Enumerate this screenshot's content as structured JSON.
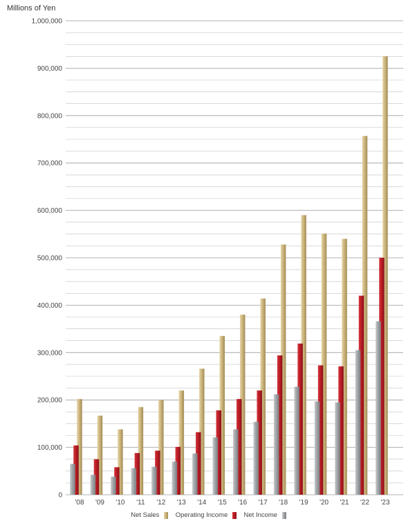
{
  "chart_data": {
    "type": "bar",
    "unit_label": "Millions of Yen",
    "categories": [
      "'08",
      "'09",
      "'10",
      "'11",
      "'12",
      "'13",
      "'14",
      "'15",
      "'16",
      "'17",
      "'18",
      "'19",
      "'20",
      "'21",
      "'22",
      "'23"
    ],
    "series": [
      {
        "name": "Net Sales",
        "color": "#c9b27a",
        "values": [
          202000,
          167000,
          138000,
          185000,
          200000,
          220000,
          266000,
          335000,
          380000,
          414000,
          528000,
          590000,
          551000,
          540000,
          757000,
          925000
        ]
      },
      {
        "name": "Operating Income",
        "color": "#b71c24",
        "values": [
          104000,
          75000,
          58000,
          88000,
          93000,
          101000,
          132000,
          178000,
          202000,
          220000,
          294000,
          319000,
          273000,
          271000,
          420000,
          500000
        ]
      },
      {
        "name": "Net Income",
        "color": "#9ea1a4",
        "values": [
          65000,
          42000,
          38000,
          56000,
          59000,
          70000,
          87000,
          121000,
          138000,
          154000,
          212000,
          228000,
          197000,
          195000,
          305000,
          366000
        ]
      }
    ],
    "ylim": [
      0,
      1000000
    ],
    "yticks": [
      0,
      100000,
      200000,
      300000,
      400000,
      500000,
      600000,
      700000,
      800000,
      900000,
      1000000
    ],
    "ytick_labels": [
      "0",
      "100,000",
      "200,000",
      "300,000",
      "400,000",
      "500,000",
      "600,000",
      "700,000",
      "800,000",
      "900,000",
      "1,000,000"
    ],
    "grid": true,
    "legend_position": "bottom-center"
  }
}
